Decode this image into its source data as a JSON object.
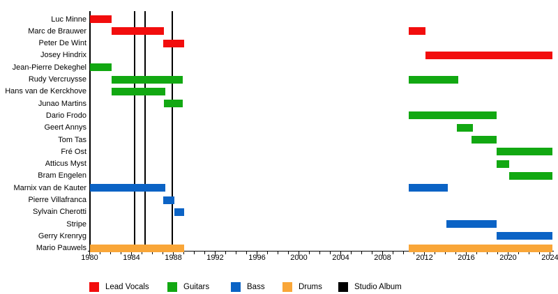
{
  "chart_data": {
    "type": "bar",
    "subtype": "timeline-gantt-band-members",
    "title": "",
    "x_axis": {
      "min": 1980,
      "max": 2024.3,
      "major_tick_interval": 4,
      "minor_tick_interval": 1,
      "tick_labels": [
        "1980",
        "1984",
        "1988",
        "1992",
        "1996",
        "2000",
        "2004",
        "2008",
        "2012",
        "2016",
        "2020",
        "2024"
      ]
    },
    "members": [
      {
        "name": "Luc Minne",
        "role": "Lead Vocals",
        "tenures": [
          [
            1980,
            1982.1
          ]
        ]
      },
      {
        "name": "Marc de Brauwer",
        "role": "Lead Vocals",
        "tenures": [
          [
            1982.1,
            1987.1
          ],
          [
            2010.5,
            2012.1
          ]
        ]
      },
      {
        "name": "Peter De Wint",
        "role": "Lead Vocals",
        "tenures": [
          [
            1987,
            1989
          ]
        ]
      },
      {
        "name": "Josey Hindrix",
        "role": "Lead Vocals",
        "tenures": [
          [
            2012.1,
            2024.2
          ]
        ]
      },
      {
        "name": "Jean-Pierre Dekeghel",
        "role": "Guitars",
        "tenures": [
          [
            1980,
            1982.1
          ]
        ]
      },
      {
        "name": "Rudy Vercruysse",
        "role": "Guitars",
        "tenures": [
          [
            1982.1,
            1988.9
          ],
          [
            2010.5,
            2015.2
          ]
        ]
      },
      {
        "name": "Hans van de Kerckhove",
        "role": "Guitars",
        "tenures": [
          [
            1982.1,
            1987.2
          ]
        ]
      },
      {
        "name": "Junao Martins",
        "role": "Guitars",
        "tenures": [
          [
            1987.1,
            1988.9
          ]
        ]
      },
      {
        "name": "Dario Frodo",
        "role": "Guitars",
        "tenures": [
          [
            2010.5,
            2018.9
          ]
        ]
      },
      {
        "name": "Geert Annys",
        "role": "Guitars",
        "tenures": [
          [
            2015.1,
            2016.6
          ]
        ]
      },
      {
        "name": "Tom Tas",
        "role": "Guitars",
        "tenures": [
          [
            2016.5,
            2018.9
          ]
        ]
      },
      {
        "name": "Fré Ost",
        "role": "Guitars",
        "tenures": [
          [
            2018.9,
            2024.2
          ]
        ]
      },
      {
        "name": "Atticus Myst",
        "role": "Guitars",
        "tenures": [
          [
            2018.9,
            2020.1
          ]
        ]
      },
      {
        "name": "Bram Engelen",
        "role": "Guitars",
        "tenures": [
          [
            2020.1,
            2024.2
          ]
        ]
      },
      {
        "name": "Marnix van de Kauter",
        "role": "Bass",
        "tenures": [
          [
            1980,
            1987.2
          ],
          [
            2010.5,
            2014.2
          ]
        ]
      },
      {
        "name": "Pierre Villafranca",
        "role": "Bass",
        "tenures": [
          [
            1987,
            1988.1
          ]
        ]
      },
      {
        "name": "Sylvain Cherotti",
        "role": "Bass",
        "tenures": [
          [
            1988.1,
            1989
          ]
        ]
      },
      {
        "name": "Stripe",
        "role": "Bass",
        "tenures": [
          [
            2014.1,
            2018.9
          ]
        ]
      },
      {
        "name": "Gerry Krenryg",
        "role": "Bass",
        "tenures": [
          [
            2018.9,
            2024.2
          ]
        ]
      },
      {
        "name": "Mario Pauwels",
        "role": "Drums",
        "tenures": [
          [
            1980,
            1989
          ],
          [
            2010.5,
            2024.2
          ]
        ]
      }
    ],
    "studio_albums_years": [
      1984.3,
      1985.3,
      1987.9
    ],
    "colors": {
      "Lead Vocals": "#f20d0d",
      "Guitars": "#12a812",
      "Bass": "#0b63c5",
      "Drums": "#f9a638",
      "Studio Album": "#000000",
      "axis": "#000000",
      "background": "#ffffff"
    },
    "legend": [
      {
        "label": "Lead Vocals",
        "color_key": "Lead Vocals"
      },
      {
        "label": "Guitars",
        "color_key": "Guitars"
      },
      {
        "label": "Bass",
        "color_key": "Bass"
      },
      {
        "label": "Drums",
        "color_key": "Drums"
      },
      {
        "label": "Studio Album",
        "color_key": "Studio Album"
      }
    ],
    "legend_position": "bottom"
  }
}
